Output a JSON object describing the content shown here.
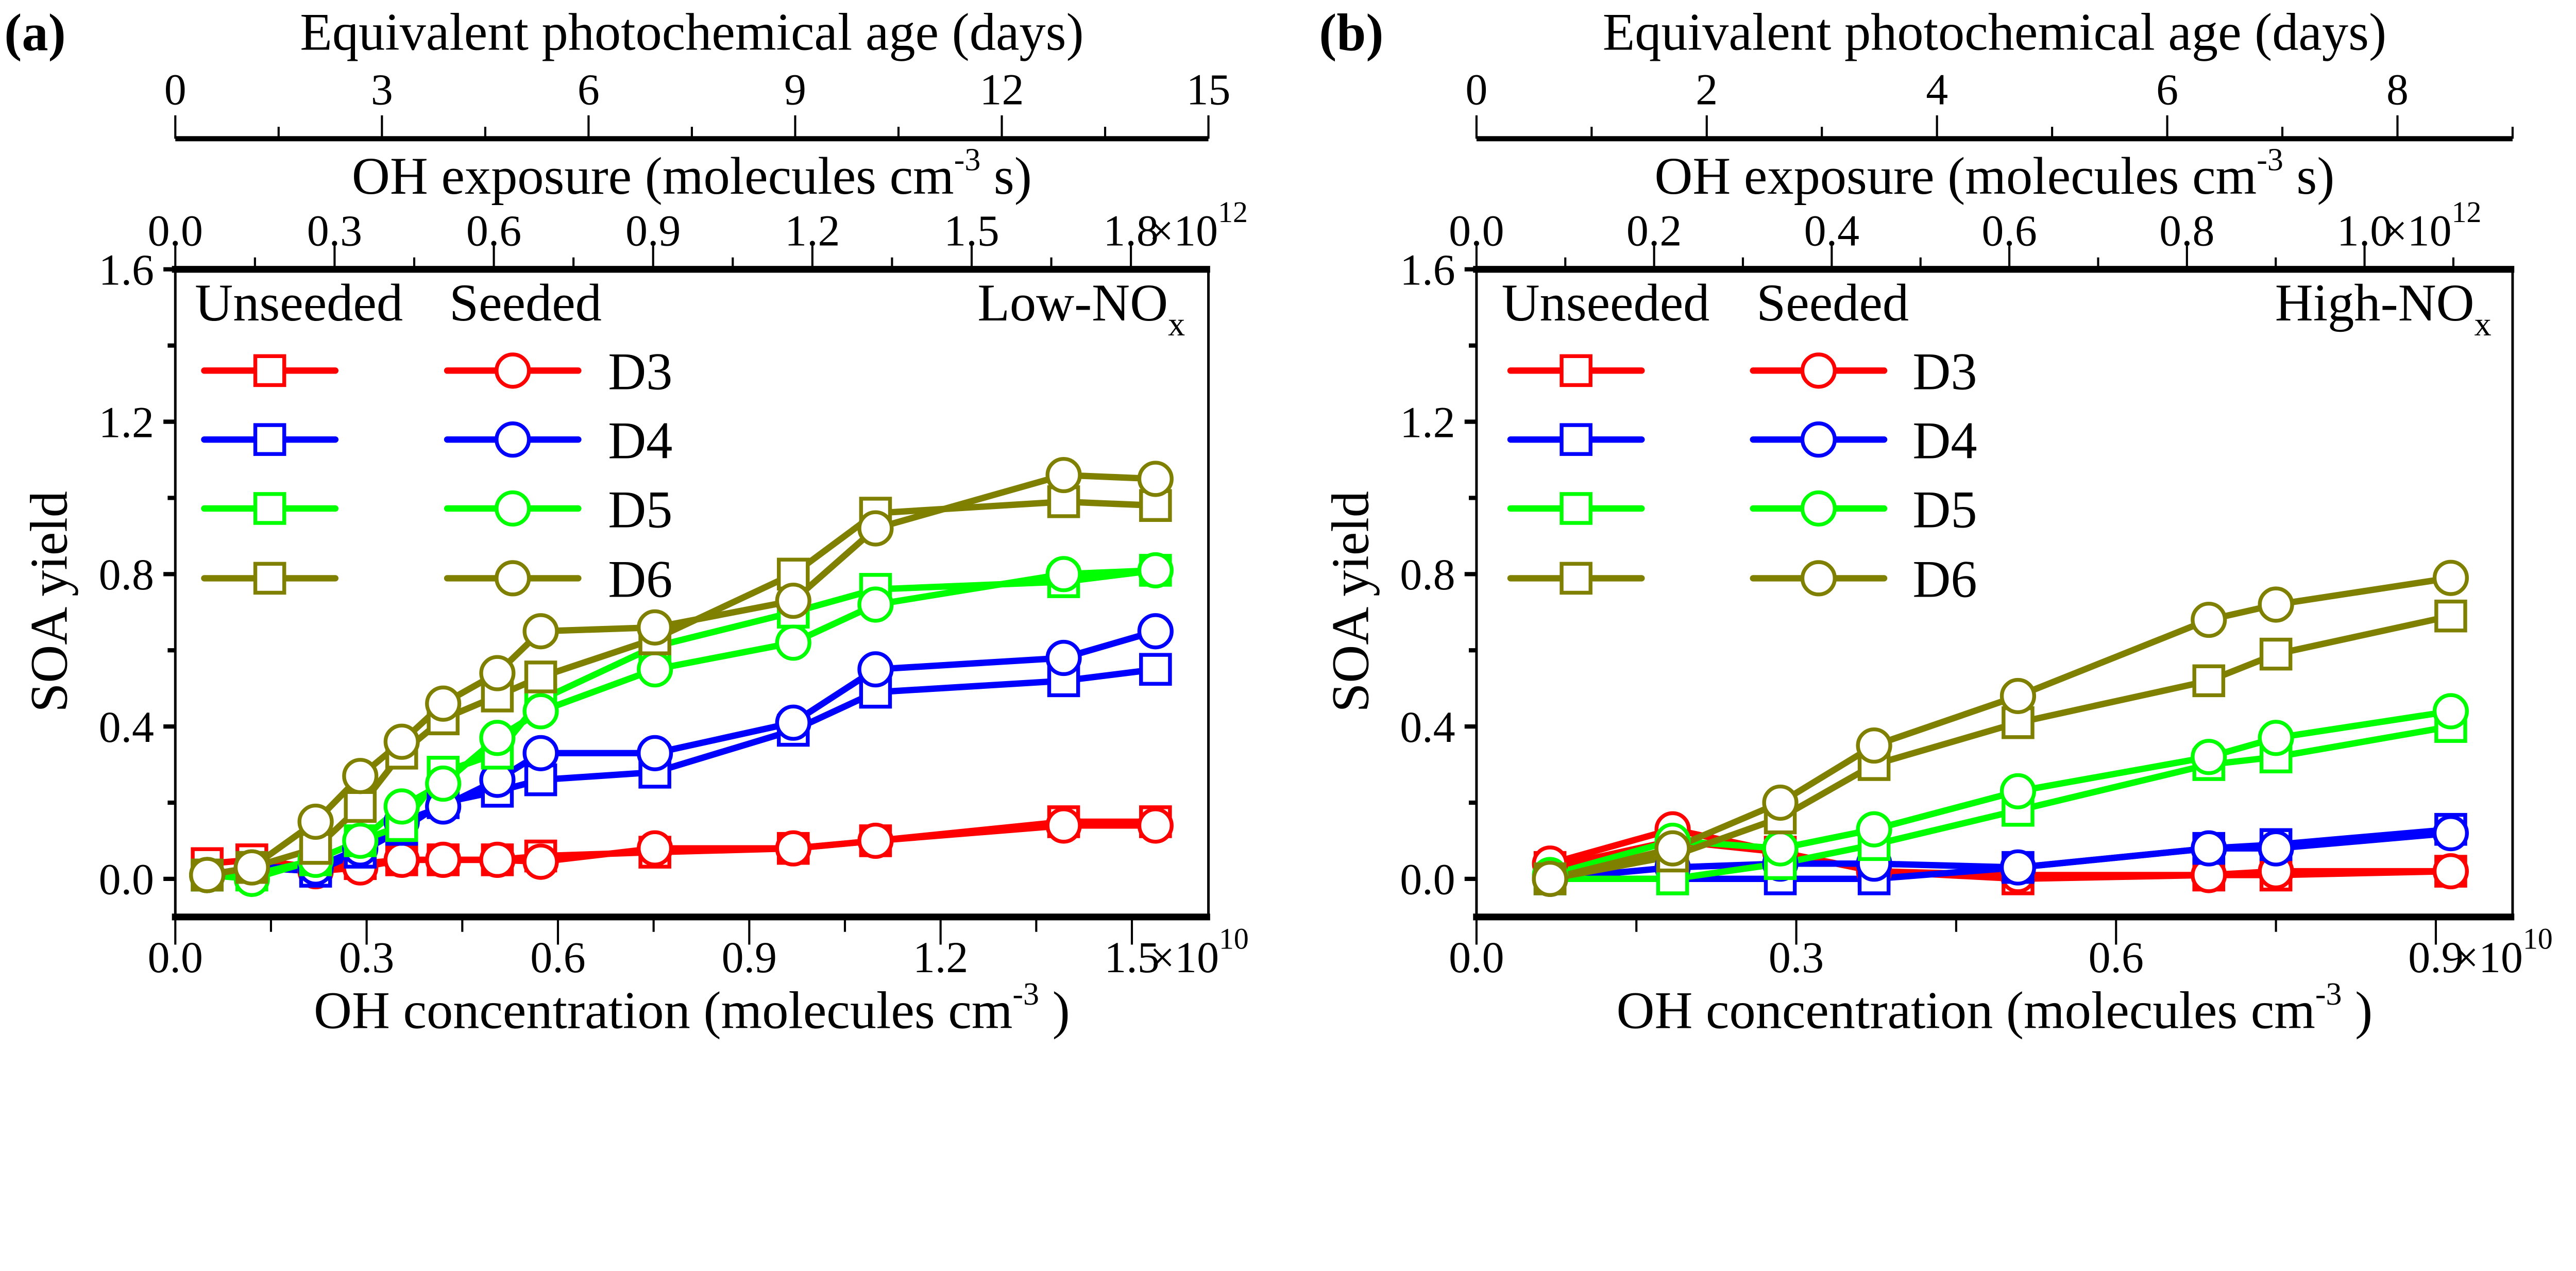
{
  "chart_data": [
    {
      "type": "line",
      "panel_label": "(a)",
      "condition": "Low-NO",
      "condition_sub": "x",
      "xlabel": "OH concentration (molecules cm",
      "xlabel_sup": "-3",
      "xlabel_end": " )",
      "x_multiplier": "×10",
      "x_multiplier_exp": "10",
      "xlim": [
        0,
        1.62
      ],
      "xticks": [
        "0.0",
        "0.3",
        "0.6",
        "0.9",
        "1.2",
        "1.5"
      ],
      "ylabel": "SOA yield",
      "ylim": [
        -0.1,
        1.6
      ],
      "yticks": [
        "0.0",
        "0.4",
        "0.8",
        "1.2",
        "1.6"
      ],
      "top_axis_1": {
        "label": "OH exposure (molecules cm",
        "label_sup": "-3",
        "label_end": " s)",
        "multiplier": "×10",
        "multiplier_exp": "12",
        "range": [
          0,
          1.946
        ],
        "ticks": [
          "0.0",
          "0.3",
          "0.6",
          "0.9",
          "1.2",
          "1.5",
          "1.8"
        ]
      },
      "top_axis_2": {
        "label": "Equivalent photochemical age (days)",
        "range": [
          0,
          15
        ],
        "ticks": [
          "0",
          "3",
          "6",
          "9",
          "12",
          "15"
        ]
      },
      "legend": {
        "header_unseeded": "Unseeded",
        "header_seeded": "Seeded",
        "placement": "top-left"
      },
      "x": [
        0.05,
        0.12,
        0.22,
        0.29,
        0.355,
        0.42,
        0.505,
        0.573,
        0.752,
        0.969,
        1.098,
        1.393,
        1.537
      ],
      "series": [
        {
          "name": "D3",
          "color": "#ff0000",
          "unseeded": [
            0.04,
            0.05,
            0.03,
            0.04,
            0.05,
            0.05,
            0.05,
            0.06,
            0.07,
            0.08,
            0.1,
            0.15,
            0.15
          ],
          "seeded": [
            0.01,
            0.03,
            0.02,
            0.03,
            0.05,
            0.05,
            0.05,
            0.045,
            0.08,
            0.08,
            0.1,
            0.14,
            0.14
          ]
        },
        {
          "name": "D4",
          "color": "#0000ff",
          "unseeded": [
            0.01,
            0.03,
            0.02,
            0.07,
            0.13,
            0.2,
            0.23,
            0.26,
            0.28,
            0.39,
            0.49,
            0.52,
            0.55
          ],
          "seeded": [
            0.01,
            0.03,
            0.03,
            0.08,
            0.15,
            0.19,
            0.26,
            0.33,
            0.33,
            0.41,
            0.55,
            0.58,
            0.65
          ]
        },
        {
          "name": "D5",
          "color": "#00ff00",
          "unseeded": [
            0.01,
            0.01,
            0.05,
            0.1,
            0.14,
            0.28,
            0.33,
            0.47,
            0.61,
            0.7,
            0.76,
            0.78,
            0.81
          ],
          "seeded": [
            0.01,
            0.0,
            0.05,
            0.1,
            0.19,
            0.25,
            0.37,
            0.44,
            0.55,
            0.62,
            0.72,
            0.8,
            0.81
          ]
        },
        {
          "name": "D6",
          "color": "#808000",
          "unseeded": [
            0.01,
            0.03,
            0.08,
            0.19,
            0.33,
            0.42,
            0.48,
            0.53,
            0.63,
            0.8,
            0.96,
            0.99,
            0.98
          ],
          "seeded": [
            0.01,
            0.03,
            0.15,
            0.27,
            0.36,
            0.46,
            0.54,
            0.65,
            0.66,
            0.73,
            0.92,
            1.06,
            1.05
          ]
        }
      ]
    },
    {
      "type": "line",
      "panel_label": "(b)",
      "condition": "High-NO",
      "condition_sub": "x",
      "xlabel": "OH concentration (molecules cm",
      "xlabel_sup": "-3",
      "xlabel_end": " )",
      "x_multiplier": "×10",
      "x_multiplier_exp": "10",
      "xlim": [
        0,
        0.972
      ],
      "xticks": [
        "0.0",
        "0.3",
        "0.6",
        "0.9"
      ],
      "ylabel": "SOA yield",
      "ylim": [
        -0.1,
        1.6
      ],
      "yticks": [
        "0.0",
        "0.4",
        "0.8",
        "1.2",
        "1.6"
      ],
      "top_axis_1": {
        "label": "OH exposure (molecules cm",
        "label_sup": "-3",
        "label_end": " s)",
        "multiplier": "×10",
        "multiplier_exp": "12",
        "range": [
          0,
          1.1667
        ],
        "ticks": [
          "0.0",
          "0.2",
          "0.4",
          "0.6",
          "0.8",
          "1.0"
        ]
      },
      "top_axis_2": {
        "label": "Equivalent photochemical age (days)",
        "range": [
          0,
          9
        ],
        "ticks": [
          "0",
          "2",
          "4",
          "6",
          "8"
        ]
      },
      "legend": {
        "header_unseeded": "Unseeded",
        "header_seeded": "Seeded",
        "placement": "top-left"
      },
      "x": [
        0.069,
        0.184,
        0.285,
        0.373,
        0.508,
        0.687,
        0.75,
        0.914
      ],
      "series": [
        {
          "name": "D3",
          "color": "#ff0000",
          "unseeded": [
            0.03,
            0.1,
            0.07,
            0.02,
            0.0,
            0.01,
            0.01,
            0.02
          ],
          "seeded": [
            0.04,
            0.13,
            0.07,
            0.02,
            0.01,
            0.01,
            0.02,
            0.02
          ]
        },
        {
          "name": "D4",
          "color": "#0000ff",
          "unseeded": [
            0.0,
            0.0,
            0.0,
            0.0,
            0.03,
            0.08,
            0.09,
            0.13
          ],
          "seeded": [
            0.0,
            0.03,
            0.04,
            0.04,
            0.03,
            0.08,
            0.08,
            0.12
          ]
        },
        {
          "name": "D5",
          "color": "#00ff00",
          "unseeded": [
            0.0,
            0.0,
            0.04,
            0.09,
            0.18,
            0.3,
            0.32,
            0.4
          ],
          "seeded": [
            0.01,
            0.1,
            0.08,
            0.13,
            0.23,
            0.32,
            0.37,
            0.44
          ]
        },
        {
          "name": "D6",
          "color": "#808000",
          "unseeded": [
            0.0,
            0.06,
            0.16,
            0.3,
            0.41,
            0.52,
            0.59,
            0.69
          ],
          "seeded": [
            0.0,
            0.08,
            0.2,
            0.35,
            0.48,
            0.68,
            0.72,
            0.79
          ]
        }
      ]
    }
  ]
}
